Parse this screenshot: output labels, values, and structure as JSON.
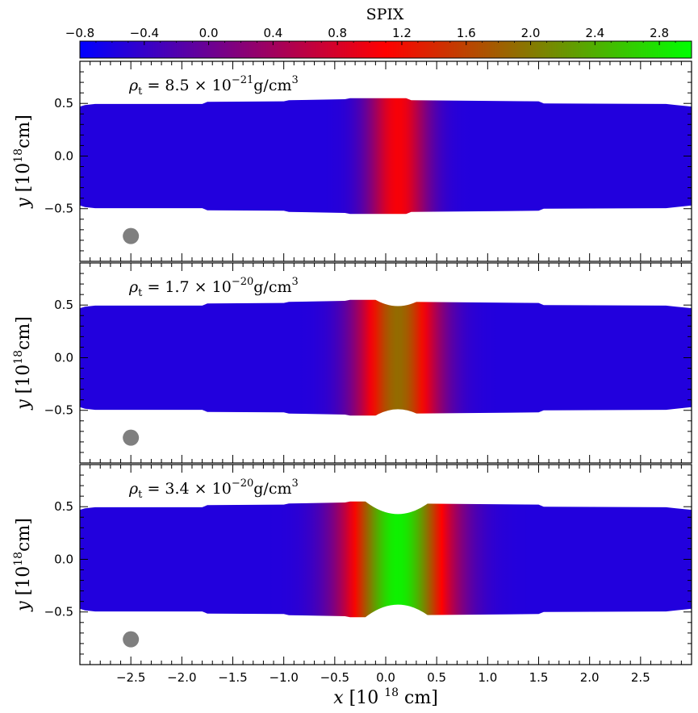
{
  "chart_data": {
    "type": "heatmap",
    "colorbar": {
      "title": "SPIX",
      "range": [
        -0.8,
        3.0
      ],
      "ticks": [
        "−0.8",
        "−0.4",
        "0.0",
        "0.4",
        "0.8",
        "1.2",
        "1.6",
        "2.0",
        "2.4",
        "2.8"
      ],
      "tick_values": [
        -0.8,
        -0.4,
        0.0,
        0.4,
        0.8,
        1.2,
        1.6,
        2.0,
        2.4,
        2.8
      ],
      "colors": [
        "#0000ff",
        "#ff0000",
        "#00ff00"
      ]
    },
    "xlabel": "x [10^18 cm]",
    "ylabel": "y [10^18 cm]",
    "xlim": [
      -3.0,
      3.0
    ],
    "ylim": [
      -1.0,
      0.9
    ],
    "x_ticks": [
      "−2.5",
      "−2.0",
      "−1.5",
      "−1.0",
      "−0.5",
      "0.0",
      "0.5",
      "1.0",
      "1.5",
      "2.0",
      "2.5"
    ],
    "x_tick_values": [
      -2.5,
      -2.0,
      -1.5,
      -1.0,
      -0.5,
      0.0,
      0.5,
      1.0,
      1.5,
      2.0,
      2.5
    ],
    "y_ticks": [
      "−0.5",
      "0.0",
      "0.5"
    ],
    "y_tick_values": [
      -0.5,
      0.0,
      0.5
    ],
    "beam": {
      "x": -2.5,
      "y": -0.76,
      "color": "#7f7f7f"
    },
    "panels": [
      {
        "label_coef": "8.5",
        "label_exp": "−21",
        "label_unit": "g/cm",
        "label_unit_exp": "3",
        "peak_spix": 1.05,
        "center": 0.12,
        "width": 0.3
      },
      {
        "label_coef": "1.7",
        "label_exp": "−20",
        "label_unit": "g/cm",
        "label_unit_exp": "3",
        "peak_spix": 1.9,
        "center": 0.12,
        "width": 0.4
      },
      {
        "label_coef": "3.4",
        "label_exp": "−20",
        "label_unit": "g/cm",
        "label_unit_exp": "3",
        "peak_spix": 2.9,
        "center": 0.12,
        "width": 0.5
      }
    ]
  },
  "labels": {
    "cb_title": "SPIX",
    "rho_sym": "ρ",
    "rho_sub": "t",
    "eq_sign": " = ",
    "times": " × 10",
    "x_axis_var": "x",
    "y_axis_var": "y",
    "axis_unit_pre": "[10",
    "axis_unit_exp": "18",
    "axis_unit_post": "cm]"
  }
}
